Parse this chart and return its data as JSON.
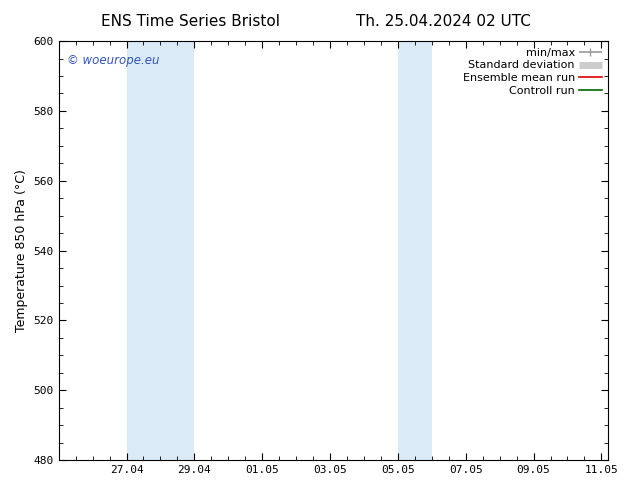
{
  "title_left": "ENS Time Series Bristol",
  "title_right": "Th. 25.04.2024 02 UTC",
  "ylabel": "Temperature 850 hPa (°C)",
  "ylim": [
    480,
    600
  ],
  "yticks": [
    480,
    500,
    520,
    540,
    560,
    580,
    600
  ],
  "xtick_labels": [
    "27.04",
    "29.04",
    "01.05",
    "03.05",
    "05.05",
    "07.05",
    "09.05",
    "11.05"
  ],
  "xtick_days_from_start": [
    2,
    4,
    6,
    8,
    10,
    12,
    14,
    16
  ],
  "x_total_days": 16.2,
  "watermark": "© woeurope.eu",
  "watermark_color": "#3355bb",
  "bg_color": "#ffffff",
  "plot_bg_color": "#ffffff",
  "shaded_bands": [
    {
      "x_start": 2,
      "x_end": 4,
      "color": "#daeaf7"
    },
    {
      "x_start": 10,
      "x_end": 11,
      "color": "#daeaf7"
    }
  ],
  "legend_items": [
    {
      "label": "min/max",
      "color": "#999999",
      "lw": 1.2
    },
    {
      "label": "Standard deviation",
      "color": "#cccccc",
      "lw": 5
    },
    {
      "label": "Ensemble mean run",
      "color": "#dd0000",
      "lw": 1.2
    },
    {
      "label": "Controll run",
      "color": "#006600",
      "lw": 1.2
    }
  ],
  "title_fontsize": 11,
  "axis_label_fontsize": 9,
  "tick_fontsize": 8,
  "legend_fontsize": 8,
  "spine_color": "#000000",
  "tick_color": "#000000"
}
